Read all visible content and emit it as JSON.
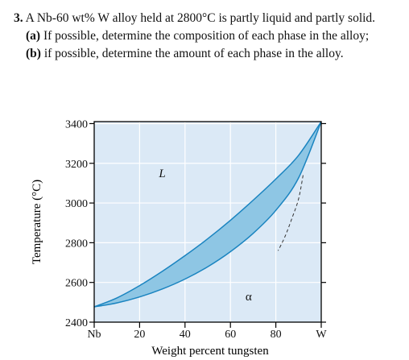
{
  "problem": {
    "number": "3.",
    "statement": " A Nb-60 wt% W alloy held at 2800°C is partly liquid and partly solid.",
    "parts": [
      {
        "label": "(a)",
        "text": " If possible, determine the composition of each phase in the alloy;"
      },
      {
        "label": "(b)",
        "text": " if possible, determine the amount of each phase in the alloy."
      }
    ]
  },
  "colors": {
    "plot_background": "#dbe9f6",
    "two_phase_fill": "#8ec6e4",
    "curve": "#1a84c0",
    "grid": "#ffffff",
    "frame": "#000000"
  },
  "chart_data": {
    "type": "area",
    "title": "",
    "xlabel": "Weight percent tungsten",
    "ylabel": "Temperature (°C)",
    "xlim": [
      0,
      100
    ],
    "ylim": [
      2400,
      3410
    ],
    "x_ticks": [
      {
        "value": 0,
        "label": "Nb"
      },
      {
        "value": 20,
        "label": "20"
      },
      {
        "value": 40,
        "label": "40"
      },
      {
        "value": 60,
        "label": "60"
      },
      {
        "value": 80,
        "label": "80"
      },
      {
        "value": 100,
        "label": "W"
      }
    ],
    "y_ticks": [
      2400,
      2600,
      2800,
      3000,
      3200,
      3400
    ],
    "grid": true,
    "region_labels": [
      {
        "text": "L",
        "x": 30,
        "y": 3130
      },
      {
        "text": "α",
        "x": 68,
        "y": 2510
      }
    ],
    "series": [
      {
        "x": [
          0,
          10,
          20,
          30,
          40,
          50,
          60,
          70,
          80,
          90,
          100
        ],
        "y": [
          2477,
          2522,
          2584,
          2656,
          2735,
          2820,
          2913,
          3014,
          3121,
          3240,
          3410
        ]
      },
      {
        "x": [
          0,
          10,
          20,
          30,
          40,
          50,
          60,
          70,
          80,
          90,
          100
        ],
        "y": [
          2477,
          2497,
          2527,
          2567,
          2617,
          2679,
          2755,
          2847,
          2963,
          3126,
          3410
        ]
      }
    ],
    "dashed_boundary": {
      "x": [
        92,
        90,
        87,
        84,
        81
      ],
      "y": [
        3140,
        3020,
        2920,
        2830,
        2760
      ]
    }
  }
}
